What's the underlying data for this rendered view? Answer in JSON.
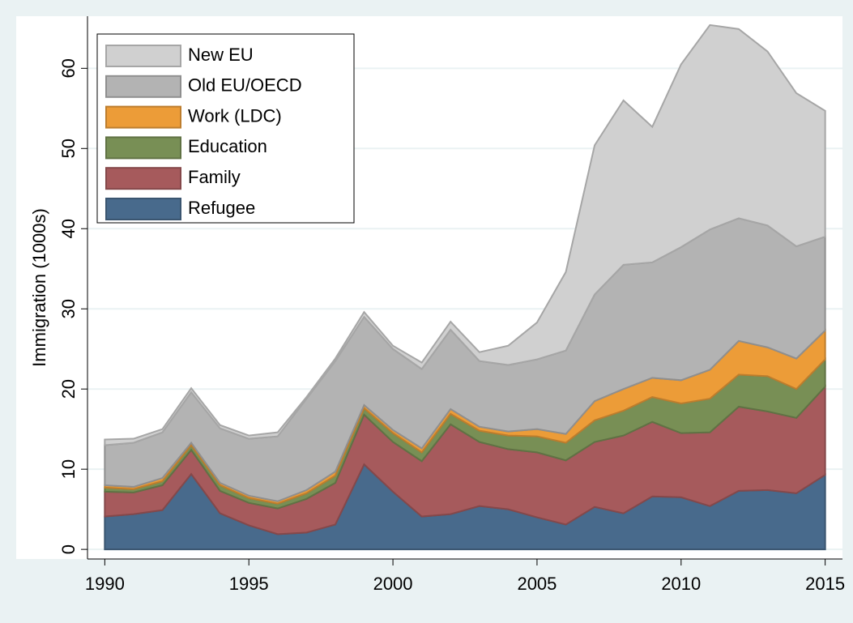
{
  "chart_data": {
    "type": "stacked-area",
    "x": [
      1990,
      1991,
      1992,
      1993,
      1994,
      1995,
      1996,
      1997,
      1998,
      1999,
      2000,
      2001,
      2002,
      2003,
      2004,
      2005,
      2006,
      2007,
      2008,
      2009,
      2010,
      2011,
      2012,
      2013,
      2014,
      2015
    ],
    "y_label": "Immigration (1000s)",
    "xlim": [
      1989.4,
      2015.6
    ],
    "xticks": [
      1990,
      1995,
      2000,
      2005,
      2010,
      2015
    ],
    "ylim": [
      -1.2,
      66.5
    ],
    "yticks": [
      0,
      10,
      20,
      30,
      40,
      50,
      60
    ],
    "grid": true,
    "legend_position": "top-left",
    "series": [
      {
        "name": "Refugee",
        "color": "#486a8c",
        "values": [
          4.1,
          4.4,
          4.9,
          9.4,
          4.5,
          3.0,
          1.9,
          2.1,
          3.1,
          10.6,
          7.2,
          4.1,
          4.4,
          5.4,
          5.0,
          4.0,
          3.1,
          5.3,
          4.5,
          6.6,
          6.5,
          5.4,
          7.3,
          7.4,
          7.0,
          9.3
        ]
      },
      {
        "name": "Family",
        "color": "#a65a5c",
        "values": [
          3.1,
          2.7,
          3.1,
          3.0,
          2.8,
          2.8,
          3.2,
          4.2,
          5.2,
          6.2,
          6.2,
          6.9,
          11.2,
          8.0,
          7.5,
          8.1,
          8.0,
          8.1,
          9.7,
          9.3,
          8.0,
          9.2,
          10.5,
          9.8,
          9.4,
          11.0
        ]
      },
      {
        "name": "Education",
        "color": "#788f55",
        "values": [
          0.5,
          0.4,
          0.5,
          0.6,
          0.7,
          0.6,
          0.6,
          0.7,
          0.9,
          0.8,
          1.1,
          1.1,
          1.3,
          1.4,
          1.7,
          2.0,
          2.2,
          2.7,
          3.1,
          3.1,
          3.7,
          4.2,
          4.0,
          4.4,
          3.6,
          3.4
        ]
      },
      {
        "name": "Work (LDC)",
        "color": "#ec9c38",
        "values": [
          0.3,
          0.3,
          0.4,
          0.3,
          0.3,
          0.3,
          0.3,
          0.4,
          0.5,
          0.4,
          0.4,
          0.5,
          0.6,
          0.5,
          0.5,
          0.9,
          1.1,
          2.4,
          2.7,
          2.4,
          2.9,
          3.6,
          4.2,
          3.6,
          3.8,
          3.6
        ]
      },
      {
        "name": "Old EU/OECD",
        "color": "#b3b3b3",
        "values": [
          5.0,
          5.5,
          5.7,
          6.3,
          6.8,
          7.1,
          8.1,
          11.4,
          13.8,
          11.0,
          10.1,
          9.9,
          9.9,
          8.2,
          8.3,
          8.7,
          10.4,
          13.3,
          15.5,
          14.4,
          16.6,
          17.5,
          15.3,
          15.2,
          14.0,
          11.7
        ]
      },
      {
        "name": "New EU",
        "color": "#d0d0d0",
        "values": [
          0.7,
          0.5,
          0.4,
          0.5,
          0.4,
          0.4,
          0.5,
          0.2,
          0.3,
          0.6,
          0.4,
          0.8,
          1.0,
          1.1,
          2.4,
          4.6,
          9.8,
          18.6,
          20.5,
          16.9,
          22.8,
          25.5,
          23.6,
          21.7,
          19.1,
          15.7
        ]
      }
    ]
  }
}
